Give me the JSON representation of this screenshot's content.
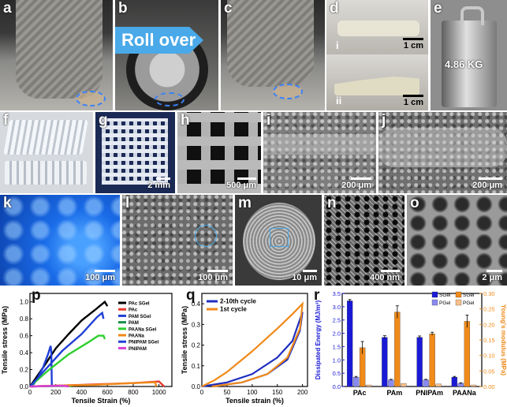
{
  "panels": {
    "a": {
      "label": "a"
    },
    "b": {
      "label": "b",
      "overlay": "Roll over"
    },
    "c": {
      "label": "c"
    },
    "d": {
      "label": "d",
      "sub1": "i",
      "sub2": "ii",
      "scale1": "1 cm",
      "scale2": "1 cm"
    },
    "e": {
      "label": "e",
      "weight": "4.86 KG"
    },
    "f": {
      "label": "f"
    },
    "g": {
      "label": "g",
      "scale": "2 mm"
    },
    "h": {
      "label": "h",
      "scale": "500 μm"
    },
    "i": {
      "label": "i",
      "scale": "200 μm"
    },
    "j": {
      "label": "j",
      "scale": "200 μm"
    },
    "k": {
      "label": "k",
      "scale": "100 μm"
    },
    "l": {
      "label": "l",
      "scale": "100 μm"
    },
    "m": {
      "label": "m",
      "scale": "10 μm"
    },
    "n": {
      "label": "n",
      "scale": "400 nm"
    },
    "o": {
      "label": "o",
      "scale": "2 μm"
    },
    "p": {
      "label": "p"
    },
    "q": {
      "label": "q"
    },
    "r": {
      "label": "r"
    }
  },
  "chart_data": [
    {
      "id": "p",
      "type": "line",
      "xlabel": "Tensile Strain (%)",
      "ylabel": "Tensile stress (MPa)",
      "xlim": [
        0,
        1100
      ],
      "ylim": [
        0,
        1.1
      ],
      "xticks": [
        0,
        200,
        400,
        600,
        800,
        1000
      ],
      "yticks": [
        0.0,
        0.2,
        0.4,
        0.6,
        0.8,
        1.0
      ],
      "series": [
        {
          "name": "PAc SGel",
          "color": "#000000",
          "points": [
            [
              0,
              0
            ],
            [
              100,
              0.22
            ],
            [
              200,
              0.45
            ],
            [
              300,
              0.62
            ],
            [
              400,
              0.78
            ],
            [
              500,
              0.9
            ],
            [
              580,
              1.0
            ],
            [
              600,
              0.95
            ]
          ]
        },
        {
          "name": "PAc",
          "color": "#e8392b",
          "points": [
            [
              0,
              0
            ],
            [
              200,
              0.01
            ],
            [
              400,
              0.02
            ],
            [
              600,
              0.03
            ],
            [
              800,
              0.04
            ],
            [
              1000,
              0.06
            ],
            [
              1040,
              0.0
            ]
          ]
        },
        {
          "name": "PAM SGel",
          "color": "#1f3fd6",
          "points": [
            [
              0,
              0
            ],
            [
              30,
              0.03
            ],
            [
              60,
              0.1
            ],
            [
              100,
              0.22
            ],
            [
              140,
              0.38
            ],
            [
              160,
              0.48
            ],
            [
              165,
              0.42
            ],
            [
              170,
              0.0
            ]
          ]
        },
        {
          "name": "PAM",
          "color": "#1a8f4a",
          "points": [
            [
              0,
              0
            ],
            [
              150,
              0.004
            ],
            [
              300,
              0.008
            ],
            [
              330,
              0.0
            ]
          ]
        },
        {
          "name": "PAANa SGel",
          "color": "#2fcf2f",
          "points": [
            [
              0,
              0
            ],
            [
              150,
              0.2
            ],
            [
              300,
              0.38
            ],
            [
              450,
              0.52
            ],
            [
              530,
              0.6
            ],
            [
              570,
              0.6
            ],
            [
              580,
              0.56
            ]
          ]
        },
        {
          "name": "PAANa",
          "color": "#f08a1a",
          "points": [
            [
              0,
              0
            ],
            [
              200,
              0.01
            ],
            [
              500,
              0.02
            ],
            [
              800,
              0.04
            ],
            [
              970,
              0.05
            ],
            [
              980,
              0.0
            ]
          ]
        },
        {
          "name": "PNIPAM SGel",
          "color": "#1f3fd6",
          "points": [
            [
              0,
              0
            ],
            [
              120,
              0.2
            ],
            [
              250,
              0.42
            ],
            [
              400,
              0.62
            ],
            [
              520,
              0.82
            ],
            [
              560,
              0.87
            ],
            [
              570,
              0.8
            ]
          ]
        },
        {
          "name": "PNIPAM",
          "color": "#d63fd6",
          "points": [
            [
              0,
              0
            ],
            [
              100,
              0.005
            ],
            [
              250,
              0.01
            ],
            [
              300,
              0.0
            ]
          ]
        }
      ]
    },
    {
      "id": "q",
      "type": "line",
      "xlabel": "Tensile strain (%)",
      "ylabel": "Tensile stress (MPa)",
      "xlim": [
        0,
        210
      ],
      "ylim": [
        0,
        0.45
      ],
      "xticks": [
        0,
        50,
        100,
        150,
        200
      ],
      "yticks": [
        0.0,
        0.1,
        0.2,
        0.3,
        0.4
      ],
      "series": [
        {
          "name": "2-10th cycle",
          "color": "#1f2fbf",
          "points": [
            [
              0,
              0
            ],
            [
              50,
              0.02
            ],
            [
              100,
              0.06
            ],
            [
              150,
              0.14
            ],
            [
              180,
              0.22
            ],
            [
              200,
              0.36
            ],
            [
              195,
              0.27
            ],
            [
              170,
              0.13
            ],
            [
              130,
              0.06
            ],
            [
              80,
              0.02
            ],
            [
              20,
              0.0
            ]
          ]
        },
        {
          "name": "1st cycle",
          "color": "#f08a1a",
          "points": [
            [
              0,
              0
            ],
            [
              25,
              0.03
            ],
            [
              50,
              0.07
            ],
            [
              100,
              0.17
            ],
            [
              150,
              0.28
            ],
            [
              180,
              0.35
            ],
            [
              200,
              0.4
            ],
            [
              195,
              0.28
            ],
            [
              170,
              0.14
            ],
            [
              130,
              0.06
            ],
            [
              80,
              0.02
            ],
            [
              20,
              0.0
            ]
          ]
        }
      ]
    },
    {
      "id": "r",
      "type": "bar",
      "categories": [
        "PAc",
        "PAm",
        "PNIPAm",
        "PAANa"
      ],
      "ylabel": "Dissipated Energy (MJ/m³)",
      "y2label": "Young's modulus (MPa)",
      "ylim": [
        0,
        3.5
      ],
      "y2lim": [
        0,
        0.3
      ],
      "yticks": [
        0.0,
        0.5,
        1.0,
        1.5,
        2.0,
        2.5,
        3.0,
        3.5
      ],
      "y2ticks": [
        0.0,
        0.05,
        0.1,
        0.15,
        0.2,
        0.25,
        0.3
      ],
      "legend": [
        "SGel",
        "PGel",
        "SGel",
        "PGel"
      ],
      "series": [
        {
          "name": "SGel",
          "axis": "left",
          "color": "#1a1ad6",
          "values": [
            3.22,
            1.85,
            1.85,
            0.35
          ],
          "errors": [
            0.05,
            0.06,
            0.05,
            0.03
          ]
        },
        {
          "name": "PGel",
          "axis": "left",
          "color": "#8a8af0",
          "values": [
            0.35,
            0.25,
            0.25,
            0.12
          ],
          "errors": [
            0.03,
            0.02,
            0.02,
            0.02
          ]
        },
        {
          "name": "SGel",
          "axis": "right",
          "color": "#f08a1a",
          "values": [
            0.125,
            0.24,
            0.17,
            0.21
          ],
          "errors": [
            0.02,
            0.02,
            0.005,
            0.02
          ]
        },
        {
          "name": "PGel",
          "axis": "right",
          "color": "#f8c08a",
          "values": [
            0.005,
            0.01,
            0.008,
            0.005
          ],
          "errors": [
            0.0,
            0.0,
            0.0,
            0.0
          ]
        }
      ]
    }
  ],
  "colors": {
    "roll_over_arrow": "#4aa9e8",
    "fluorescence": "#1a6be8",
    "chart_frame": "#000000"
  }
}
